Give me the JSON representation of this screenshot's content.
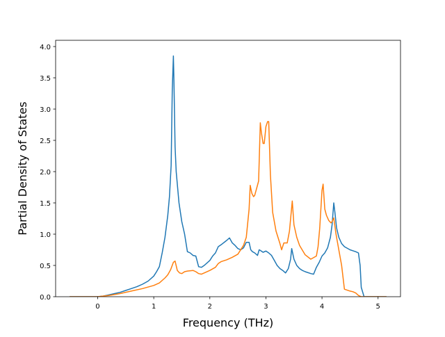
{
  "chart_data": {
    "type": "line",
    "title": "",
    "xlabel": "Frequency (THz)",
    "ylabel": "Partial Density of States",
    "xlim": [
      -0.75,
      5.4
    ],
    "ylim": [
      0.0,
      4.1
    ],
    "xticks": [
      0,
      1,
      2,
      3,
      4,
      5
    ],
    "xtick_labels": [
      "0",
      "1",
      "2",
      "3",
      "4",
      "5"
    ],
    "yticks": [
      0.0,
      0.5,
      1.0,
      1.5,
      2.0,
      2.5,
      3.0,
      3.5,
      4.0
    ],
    "ytick_labels": [
      "0.0",
      "0.5",
      "1.0",
      "1.5",
      "2.0",
      "2.5",
      "3.0",
      "3.5",
      "4.0"
    ],
    "grid": false,
    "legend": "none",
    "series": [
      {
        "color": "#1f77b4",
        "x": [
          -0.5,
          -0.3,
          -0.1,
          0.0,
          0.1,
          0.2,
          0.3,
          0.4,
          0.5,
          0.6,
          0.7,
          0.8,
          0.9,
          1.0,
          1.05,
          1.1,
          1.15,
          1.2,
          1.25,
          1.28,
          1.31,
          1.33,
          1.35,
          1.36,
          1.38,
          1.4,
          1.45,
          1.5,
          1.55,
          1.6,
          1.65,
          1.7,
          1.75,
          1.8,
          1.85,
          1.9,
          2.0,
          2.05,
          2.1,
          2.15,
          2.2,
          2.3,
          2.35,
          2.4,
          2.45,
          2.5,
          2.55,
          2.6,
          2.65,
          2.7,
          2.73,
          2.76,
          2.8,
          2.85,
          2.88,
          2.9,
          2.95,
          3.0,
          3.05,
          3.1,
          3.15,
          3.2,
          3.25,
          3.3,
          3.35,
          3.4,
          3.44,
          3.46,
          3.5,
          3.55,
          3.6,
          3.65,
          3.7,
          3.8,
          3.85,
          3.9,
          3.95,
          4.0,
          4.05,
          4.1,
          4.15,
          4.18,
          4.21,
          4.23,
          4.26,
          4.3,
          4.35,
          4.4,
          4.5,
          4.6,
          4.65,
          4.68,
          4.7,
          4.75,
          4.8,
          5.0,
          5.15
        ],
        "y": [
          0.0,
          0.0,
          0.0,
          0.0,
          0.01,
          0.03,
          0.05,
          0.07,
          0.1,
          0.13,
          0.16,
          0.2,
          0.25,
          0.33,
          0.4,
          0.48,
          0.7,
          0.95,
          1.3,
          1.6,
          2.1,
          3.3,
          3.85,
          3.45,
          2.4,
          2.0,
          1.5,
          1.2,
          1.0,
          0.72,
          0.7,
          0.66,
          0.65,
          0.48,
          0.47,
          0.5,
          0.58,
          0.65,
          0.7,
          0.8,
          0.83,
          0.9,
          0.94,
          0.86,
          0.82,
          0.77,
          0.75,
          0.78,
          0.87,
          0.87,
          0.75,
          0.72,
          0.7,
          0.66,
          0.75,
          0.74,
          0.71,
          0.73,
          0.7,
          0.66,
          0.58,
          0.5,
          0.45,
          0.42,
          0.38,
          0.45,
          0.6,
          0.77,
          0.6,
          0.5,
          0.45,
          0.42,
          0.4,
          0.37,
          0.36,
          0.47,
          0.55,
          0.65,
          0.7,
          0.78,
          0.95,
          1.15,
          1.5,
          1.35,
          1.1,
          0.95,
          0.85,
          0.8,
          0.75,
          0.72,
          0.7,
          0.5,
          0.15,
          0.0,
          0.0,
          0.0,
          0.0
        ]
      },
      {
        "color": "#ff7f0e",
        "x": [
          -0.5,
          -0.3,
          -0.1,
          0.0,
          0.2,
          0.4,
          0.6,
          0.8,
          1.0,
          1.1,
          1.2,
          1.25,
          1.3,
          1.35,
          1.38,
          1.42,
          1.46,
          1.5,
          1.55,
          1.6,
          1.7,
          1.75,
          1.8,
          1.85,
          1.9,
          2.0,
          2.1,
          2.15,
          2.2,
          2.3,
          2.4,
          2.5,
          2.6,
          2.65,
          2.7,
          2.72,
          2.75,
          2.78,
          2.8,
          2.84,
          2.87,
          2.9,
          2.92,
          2.95,
          2.97,
          3.0,
          3.03,
          3.05,
          3.08,
          3.12,
          3.18,
          3.25,
          3.28,
          3.32,
          3.38,
          3.42,
          3.47,
          3.5,
          3.55,
          3.6,
          3.7,
          3.8,
          3.9,
          3.93,
          3.96,
          4.0,
          4.02,
          4.05,
          4.08,
          4.12,
          4.16,
          4.18,
          4.21,
          4.25,
          4.3,
          4.35,
          4.4,
          4.5,
          4.55,
          4.6,
          4.65,
          4.7,
          4.8,
          5.0,
          5.15
        ],
        "y": [
          0.0,
          0.0,
          0.0,
          0.0,
          0.02,
          0.05,
          0.09,
          0.13,
          0.18,
          0.22,
          0.3,
          0.35,
          0.43,
          0.55,
          0.57,
          0.42,
          0.38,
          0.37,
          0.4,
          0.41,
          0.42,
          0.4,
          0.37,
          0.36,
          0.38,
          0.42,
          0.47,
          0.53,
          0.56,
          0.59,
          0.63,
          0.68,
          0.82,
          0.95,
          1.4,
          1.78,
          1.65,
          1.6,
          1.62,
          1.75,
          1.85,
          2.78,
          2.62,
          2.45,
          2.45,
          2.72,
          2.8,
          2.8,
          1.95,
          1.35,
          1.05,
          0.85,
          0.75,
          0.86,
          0.86,
          1.05,
          1.53,
          1.15,
          0.95,
          0.82,
          0.67,
          0.6,
          0.65,
          0.8,
          1.1,
          1.7,
          1.8,
          1.4,
          1.3,
          1.22,
          1.18,
          1.2,
          1.26,
          1.0,
          0.75,
          0.5,
          0.12,
          0.09,
          0.08,
          0.06,
          0.02,
          0.0,
          0.0,
          0.0,
          0.0
        ]
      }
    ]
  }
}
